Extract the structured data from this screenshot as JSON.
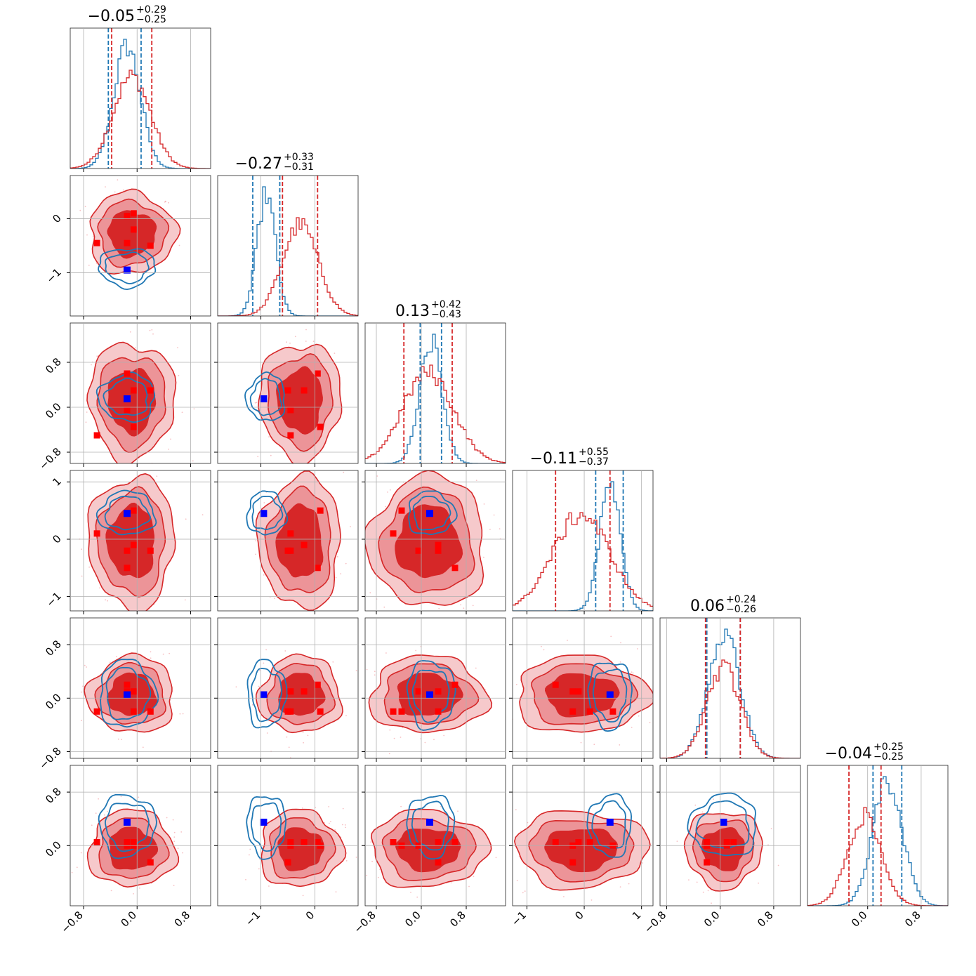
{
  "chart_data": {
    "type": "corner",
    "n_params": 6,
    "colors": {
      "primary": "#d62728",
      "secondary": "#1f77b4",
      "marker_primary": "#ff0000",
      "marker_secondary": "#0000ff"
    },
    "titles": [
      {
        "median": "−0.05",
        "plus": "+0.29",
        "minus": "−0.25"
      },
      {
        "median": "−0.27",
        "plus": "+0.33",
        "minus": "−0.31"
      },
      {
        "median": "0.13",
        "plus": "+0.42",
        "minus": "−0.43"
      },
      {
        "median": "−0.11",
        "plus": "+0.55",
        "minus": "−0.37"
      },
      {
        "median": "0.06",
        "plus": "+0.24",
        "minus": "−0.26"
      },
      {
        "median": "−0.04",
        "plus": "+0.25",
        "minus": "−0.25"
      }
    ],
    "ranges": [
      [
        -1.0,
        1.1
      ],
      [
        -1.8,
        0.8
      ],
      [
        -1.0,
        1.5
      ],
      [
        -1.25,
        1.2
      ],
      [
        -0.9,
        1.2
      ],
      [
        -0.9,
        1.2
      ]
    ],
    "x_ticks": [
      {
        "values": [
          -0.8,
          0.0,
          0.8
        ],
        "labels": [
          "−0.8",
          "0.0",
          "0.8"
        ]
      },
      {
        "values": [
          -1,
          0
        ],
        "labels": [
          "−1",
          "0"
        ]
      },
      {
        "values": [
          -0.8,
          0.0,
          0.8
        ],
        "labels": [
          "−0.8",
          "0.0",
          "0.8"
        ]
      },
      {
        "values": [
          -1,
          0,
          1
        ],
        "labels": [
          "−1",
          "0",
          "1"
        ]
      },
      {
        "values": [
          -0.8,
          0.0,
          0.8
        ],
        "labels": [
          "−0.8",
          "0.0",
          "0.8"
        ]
      },
      {
        "values": [
          0.0,
          0.8
        ],
        "labels": [
          "0.0",
          "0.8"
        ]
      }
    ],
    "y_ticks": [
      null,
      {
        "values": [
          -1,
          0
        ],
        "labels": [
          "−1",
          "0"
        ]
      },
      {
        "values": [
          -0.8,
          0.0,
          0.8
        ],
        "labels": [
          "−0.8",
          "0.0",
          "0.8"
        ]
      },
      {
        "values": [
          -1,
          0,
          1
        ],
        "labels": [
          "−1",
          "0",
          "1"
        ]
      },
      {
        "values": [
          -0.8,
          0.0,
          0.8
        ],
        "labels": [
          "−0.8",
          "0.0",
          "0.8"
        ]
      },
      {
        "values": [
          0.0,
          0.8
        ],
        "labels": [
          "0.0",
          "0.8"
        ]
      }
    ],
    "quantiles": {
      "primary": [
        [
          -0.38,
          0.22
        ],
        [
          -0.6,
          0.05
        ],
        [
          -0.31,
          0.55
        ],
        [
          -0.5,
          0.45
        ],
        [
          -0.22,
          0.3
        ],
        [
          -0.28,
          0.2
        ]
      ],
      "secondary": [
        [
          -0.43,
          0.06
        ],
        [
          -1.15,
          -0.65
        ],
        [
          -0.02,
          0.36
        ],
        [
          0.2,
          0.68
        ],
        [
          -0.2,
          0.3
        ],
        [
          0.08,
          0.51
        ]
      ]
    },
    "marginals": {
      "primary": [
        {
          "mu": -0.08,
          "sigma": 0.28
        },
        {
          "mu": -0.27,
          "sigma": 0.33
        },
        {
          "mu": 0.12,
          "sigma": 0.45
        },
        {
          "mu": -0.05,
          "sigma": 0.5
        },
        {
          "mu": 0.05,
          "sigma": 0.25
        },
        {
          "mu": -0.05,
          "sigma": 0.25
        }
      ],
      "secondary": [
        {
          "mu": -0.15,
          "sigma": 0.2
        },
        {
          "mu": -0.9,
          "sigma": 0.17
        },
        {
          "mu": 0.17,
          "sigma": 0.2
        },
        {
          "mu": 0.45,
          "sigma": 0.18
        },
        {
          "mu": 0.06,
          "sigma": 0.24
        },
        {
          "mu": 0.3,
          "sigma": 0.22
        }
      ]
    },
    "truth_secondary": [
      -0.15,
      -0.95,
      0.15,
      0.45,
      0.05,
      0.35
    ],
    "truth_primary": [
      [
        -0.15,
        0.05,
        0.6,
        -0.5,
        0.2,
        0.05
      ],
      [
        -0.05,
        -0.2,
        0.3,
        -0.1,
        0.1,
        0.05
      ],
      [
        -0.15,
        -0.45,
        -0.05,
        -0.2,
        0.1,
        0.0
      ],
      [
        0.2,
        -0.5,
        0.3,
        -0.2,
        -0.2,
        -0.25
      ],
      [
        -0.05,
        0.1,
        -0.35,
        0.5,
        -0.2,
        0.0
      ],
      [
        -0.6,
        -0.45,
        -0.5,
        0.1,
        -0.2,
        0.05
      ]
    ]
  }
}
